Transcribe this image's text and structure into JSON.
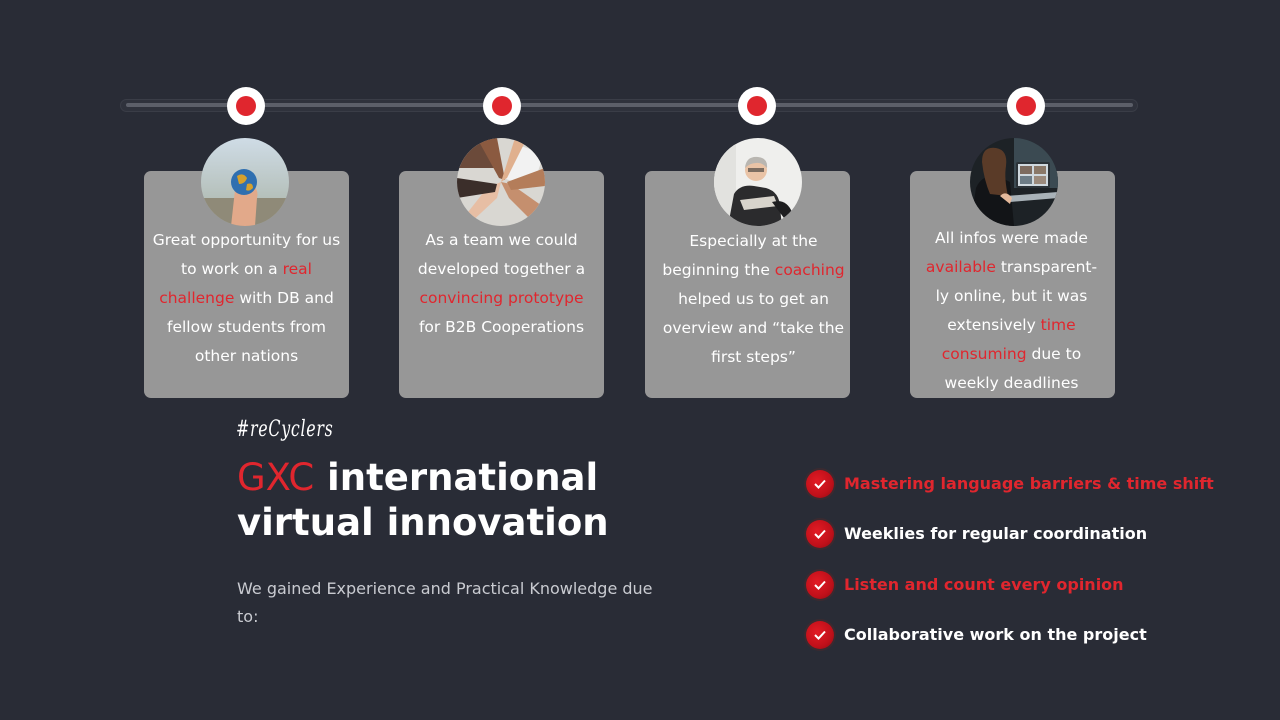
{
  "cards": [
    {
      "photo_icon": "globe-in-hand-photo",
      "segments": [
        {
          "t": "Great opportunity for us to work on a "
        },
        {
          "t": "real challenge",
          "hl": true
        },
        {
          "t": " with DB and fellow students from other nations"
        }
      ]
    },
    {
      "photo_icon": "team-hands-photo",
      "segments": [
        {
          "t": "As a team we could developed together a "
        },
        {
          "t": "convincing prototype",
          "hl": true
        },
        {
          "t": " for B2B Cooperations"
        }
      ]
    },
    {
      "photo_icon": "coach-photo",
      "segments": [
        {
          "t": "Especially at the beginning the "
        },
        {
          "t": "coaching",
          "hl": true
        },
        {
          "t": " helped us to get an overview and “take the first steps”"
        }
      ]
    },
    {
      "photo_icon": "online-meeting-photo",
      "segments": [
        {
          "t": "All infos were made "
        },
        {
          "t": "available",
          "hl": true
        },
        {
          "t": " transparent-ly online, but it was extensively "
        },
        {
          "t": "time consuming",
          "hl": true
        },
        {
          "t": " due to weekly deadlines"
        }
      ]
    }
  ],
  "hashtag": "#reCyclers",
  "headline": {
    "brand": "GXC",
    "line1_rest": " international",
    "line2": "virtual innovation"
  },
  "intro": "We gained Experience and Practical Knowledge due to:",
  "checklist": [
    {
      "label": "Mastering language barriers & time shift",
      "highlight": true
    },
    {
      "label": "Weeklies for regular coordination",
      "highlight": false
    },
    {
      "label": "Listen and count every opinion",
      "highlight": true
    },
    {
      "label": "Collaborative  work on the project",
      "highlight": false
    }
  ],
  "colors": {
    "background": "#292c36",
    "accent": "#e0262e",
    "card": "#979797",
    "text": "#ffffff"
  }
}
